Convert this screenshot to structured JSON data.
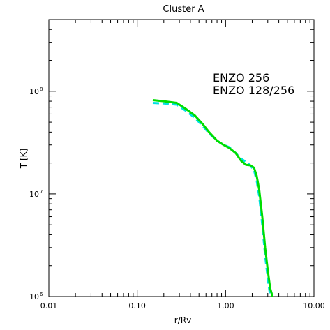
{
  "chart_data": {
    "type": "line",
    "title": "Cluster A",
    "xlabel": "r/Rv",
    "ylabel": "T [K]",
    "xscale": "log",
    "yscale": "log",
    "xlim": [
      0.01,
      10.0
    ],
    "ylim": [
      1000000,
      500000000
    ],
    "x_ticks": [
      {
        "value": 0.01,
        "label": "0.01"
      },
      {
        "value": 0.1,
        "label": "0.10"
      },
      {
        "value": 1.0,
        "label": "1.00"
      },
      {
        "value": 10.0,
        "label": "10.00"
      }
    ],
    "y_ticks": [
      {
        "value": 1000000,
        "base": "10",
        "exp": "6"
      },
      {
        "value": 10000000,
        "base": "10",
        "exp": "7"
      },
      {
        "value": 100000000,
        "base": "10",
        "exp": "8"
      }
    ],
    "legend_position": "top-right",
    "series": [
      {
        "name": "ENZO 256",
        "color": "#00dd00",
        "dash": "solid",
        "x": [
          0.15,
          0.2,
          0.28,
          0.35,
          0.45,
          0.55,
          0.65,
          0.8,
          0.95,
          1.1,
          1.3,
          1.5,
          1.7,
          1.9,
          2.1,
          2.25,
          2.4,
          2.6,
          2.8,
          3.0,
          3.2,
          3.4
        ],
        "y": [
          82000000,
          80000000,
          77000000,
          68000000,
          58000000,
          48000000,
          40000000,
          33000000,
          30000000,
          28000000,
          25000000,
          21000000,
          19200000,
          19000000,
          18000000,
          15000000,
          11000000,
          6000000,
          3000000,
          1800000,
          1200000,
          1000000
        ]
      },
      {
        "name": "ENZO 128/256",
        "color": "#00e0e0",
        "dash": "dashed",
        "x": [
          0.15,
          0.2,
          0.28,
          0.35,
          0.45,
          0.55,
          0.65,
          0.8,
          0.95,
          1.1,
          1.3,
          1.5,
          1.7,
          1.9,
          2.1,
          2.25,
          2.4,
          2.6,
          2.8,
          3.0,
          3.2
        ],
        "y": [
          77000000,
          76000000,
          74000000,
          65000000,
          55000000,
          46000000,
          39000000,
          33000000,
          30000000,
          28500000,
          25000000,
          22000000,
          20500000,
          19000000,
          17000000,
          13500000,
          9500000,
          5000000,
          2500000,
          1500000,
          1000000
        ]
      }
    ]
  }
}
